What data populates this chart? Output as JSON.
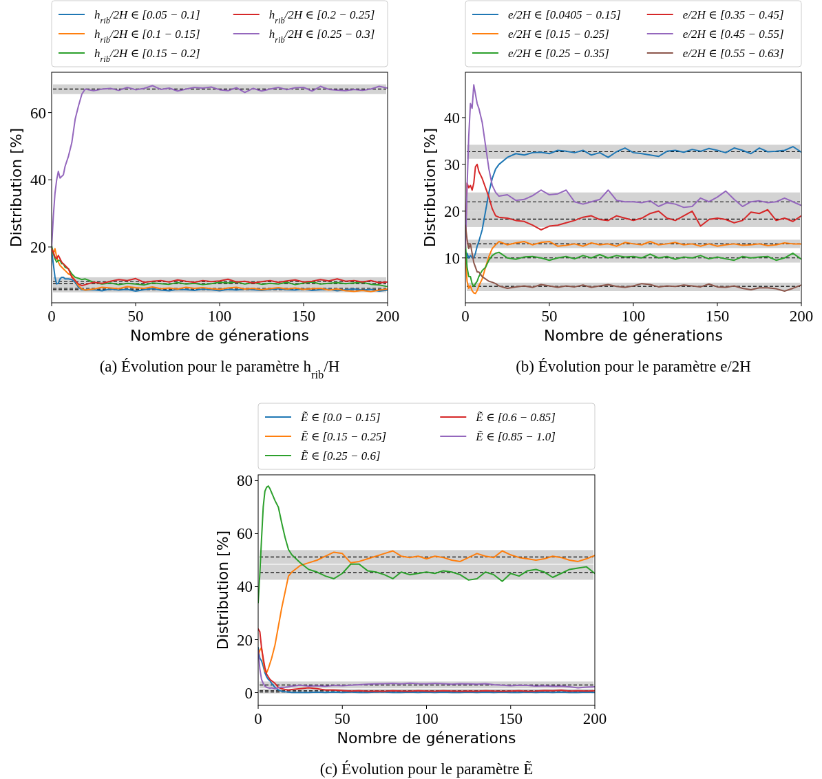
{
  "chart_data": [
    {
      "type": "line",
      "xlabel": "Nombre de génerations",
      "ylabel": "Distribution [%]",
      "annotations": [
        "(a) Évolution pour le paramètre h$_{rib}$/H"
      ],
      "legend": "top",
      "xlim": [
        0,
        200
      ],
      "xticks": [
        0,
        50,
        100,
        150,
        200
      ],
      "ylim": [
        3.4,
        72
      ],
      "yticks": [
        20,
        40,
        60
      ],
      "x": [
        0,
        1,
        2,
        3,
        4,
        5,
        6,
        7,
        8,
        10,
        12,
        14,
        16,
        18,
        20,
        25,
        30,
        35,
        40,
        45,
        50,
        55,
        60,
        65,
        70,
        75,
        80,
        85,
        90,
        95,
        100,
        105,
        110,
        115,
        120,
        125,
        130,
        135,
        140,
        145,
        150,
        155,
        160,
        165,
        170,
        175,
        180,
        185,
        190,
        195,
        200
      ],
      "series": [
        {
          "name": "h$_{rib}$/2H ∈ [0.05 − 0.1]",
          "color": "#1f77b4",
          "values": [
            19,
            15,
            11,
            9,
            9.2,
            10.5,
            11,
            11,
            10.5,
            10.5,
            10.3,
            9.5,
            8,
            7.3,
            7.2,
            7.3,
            7.0,
            7.5,
            7.2,
            7.4,
            6.9,
            7.3,
            7.6,
            7.2,
            7.0,
            7.4,
            7.3,
            7.1,
            7.5,
            7.3,
            7.0,
            7.4,
            7.2,
            7.5,
            7.3,
            7.1,
            7.4,
            7.6,
            7.3,
            7.2,
            7.5,
            7.1,
            7.3,
            7.4,
            7.0,
            7.3,
            7.5,
            7.2,
            7.4,
            6.9,
            7.2
          ]
        },
        {
          "name": "h$_{rib}$/2H ∈ [0.1 − 0.15]",
          "color": "#ff7f0e",
          "values": [
            19.5,
            18,
            19.5,
            17,
            15.5,
            14.5,
            14,
            13.5,
            13,
            12,
            11.5,
            10,
            8.5,
            7.5,
            7.2,
            7.5,
            8.0,
            7.8,
            7.6,
            8.2,
            7.9,
            7.7,
            8.1,
            7.6,
            7.8,
            7.5,
            8.0,
            7.7,
            7.9,
            7.6,
            7.4,
            7.8,
            8.0,
            7.5,
            7.7,
            7.3,
            7.6,
            7.9,
            7.5,
            7.8,
            7.4,
            7.6,
            7.7,
            7.2,
            7.5,
            7.0,
            6.8,
            7.1,
            6.7,
            7.2,
            7.5
          ]
        },
        {
          "name": "h$_{rib}$/2H ∈ [0.15 − 0.2]",
          "color": "#2ca02c",
          "values": [
            20.5,
            18,
            16.5,
            15.5,
            16,
            16,
            15,
            15,
            14,
            13.5,
            12,
            11,
            10.7,
            10.3,
            10.5,
            9.5,
            9.0,
            9.3,
            8.8,
            9.2,
            9.0,
            8.7,
            9.3,
            9.1,
            8.9,
            9.4,
            9.0,
            9.2,
            8.8,
            9.1,
            9.5,
            9.3,
            9.6,
            9.0,
            9.4,
            8.9,
            9.2,
            9.0,
            9.5,
            8.8,
            9.3,
            9.6,
            9.0,
            9.2,
            9.4,
            9.1,
            9.3,
            9.5,
            8.9,
            8.7,
            8.2
          ]
        },
        {
          "name": "h$_{rib}$/2H ∈ [0.2 − 0.25]",
          "color": "#d62728",
          "values": [
            19.5,
            18.5,
            17,
            16.5,
            17.5,
            16.5,
            15.5,
            15,
            14.5,
            13.5,
            11,
            10,
            9,
            8.5,
            8.8,
            9.5,
            9.2,
            9.8,
            10.3,
            10.0,
            10.6,
            9.5,
            9.8,
            10.0,
            9.6,
            10.2,
            9.8,
            9.5,
            10.0,
            9.7,
            9.9,
            10.4,
            9.6,
            9.8,
            9.3,
            9.7,
            10.0,
            9.5,
            9.9,
            10.2,
            9.6,
            9.8,
            10.3,
            9.9,
            10.5,
            9.8,
            10.0,
            9.6,
            10.0,
            9.4,
            9.6
          ]
        },
        {
          "name": "h$_{rib}$/2H ∈ [0.25 − 0.3]",
          "color": "#9467bd",
          "values": [
            20,
            29,
            36,
            40,
            42.5,
            40.5,
            41,
            41.5,
            44,
            47,
            51,
            58,
            62,
            65.5,
            67,
            66.5,
            67,
            67.2,
            66.6,
            67.5,
            66.8,
            67.2,
            68,
            66.9,
            67.3,
            66.4,
            67,
            67.5,
            67.3,
            67.6,
            66.8,
            66.5,
            67.4,
            66,
            67.2,
            66.4,
            67,
            67.5,
            66.8,
            67.4,
            67.5,
            66.4,
            67.8,
            66.9,
            66.7,
            66.5,
            66.9,
            66.6,
            67,
            67.8,
            67.3
          ]
        }
      ],
      "bands": [
        {
          "axis": "y",
          "from": 6.5,
          "to": 11.0,
          "color": "#d3d3d3"
        },
        {
          "axis": "y",
          "from": 65.5,
          "to": 68.4,
          "color": "#d3d3d3"
        }
      ],
      "ref_lines": [
        {
          "axis": "y",
          "value": 7.3,
          "color": "#000000",
          "line_style": "dashed"
        },
        {
          "axis": "y",
          "value": 7.7,
          "color": "#000000",
          "line_style": "dashed"
        },
        {
          "axis": "y",
          "value": 9.1,
          "color": "#000000",
          "line_style": "dashed"
        },
        {
          "axis": "y",
          "value": 9.7,
          "color": "#000000",
          "line_style": "dashed"
        },
        {
          "axis": "y",
          "value": 67.0,
          "color": "#000000",
          "line_style": "dashed"
        }
      ]
    },
    {
      "type": "line",
      "xlabel": "Nombre de génerations",
      "ylabel": "Distribution [%]",
      "annotations": [
        "(b) Évolution pour le paramètre e/2H"
      ],
      "legend": "top",
      "xlim": [
        0,
        200
      ],
      "xticks": [
        0,
        50,
        100,
        150,
        200
      ],
      "ylim": [
        0.4,
        49.7
      ],
      "yticks": [
        10,
        20,
        30,
        40
      ],
      "x": [
        0,
        1,
        2,
        3,
        4,
        5,
        6,
        7,
        8,
        10,
        12,
        14,
        16,
        18,
        20,
        25,
        30,
        35,
        40,
        45,
        50,
        55,
        60,
        65,
        70,
        75,
        80,
        85,
        90,
        95,
        100,
        105,
        110,
        115,
        120,
        125,
        130,
        135,
        140,
        145,
        150,
        155,
        160,
        165,
        170,
        175,
        180,
        185,
        190,
        195,
        200
      ],
      "series": [
        {
          "name": "e/2H ∈ [0.0405 − 0.15]",
          "color": "#1f77b4",
          "values": [
            8,
            11,
            10,
            10.5,
            10,
            10,
            11,
            12.5,
            13.5,
            16,
            20,
            24,
            27,
            29,
            30,
            31.5,
            32.3,
            32,
            32.5,
            32.6,
            32.3,
            33,
            32.8,
            32.5,
            33,
            32,
            32.5,
            31.5,
            32.7,
            33.5,
            32.5,
            32.3,
            32,
            31.7,
            32.8,
            33,
            32.6,
            33.2,
            32.8,
            33.4,
            33,
            32.5,
            33.5,
            33,
            32.3,
            33.5,
            32.7,
            32.8,
            33,
            33.8,
            32.6
          ]
        },
        {
          "name": "e/2H ∈ [0.15 − 0.25]",
          "color": "#ff7f0e",
          "values": [
            10,
            5,
            3.5,
            4,
            3,
            2.5,
            2.4,
            3,
            4,
            5.5,
            8,
            10.3,
            12,
            12.8,
            13.5,
            12.8,
            13.2,
            13.5,
            12.8,
            13.3,
            13.5,
            12.5,
            12.7,
            13,
            12.5,
            13.2,
            12.8,
            13,
            12.5,
            13.3,
            13,
            12.8,
            13.5,
            12.8,
            13,
            13.3,
            12.8,
            13,
            12.5,
            13,
            12.5,
            12.8,
            13,
            12.7,
            12.8,
            13,
            12.6,
            12.8,
            13.2,
            13,
            13
          ]
        },
        {
          "name": "e/2H ∈ [0.25 − 0.35]",
          "color": "#2ca02c",
          "values": [
            13,
            8,
            6,
            6,
            4.5,
            3.9,
            4.5,
            5,
            6,
            7.3,
            8,
            9.5,
            10.5,
            11,
            11.2,
            10,
            9.7,
            10.2,
            10.3,
            10,
            9.5,
            10,
            10.3,
            9.8,
            10.5,
            10,
            10.7,
            10,
            10.5,
            10.2,
            10.3,
            10,
            10.8,
            10,
            10.3,
            9.7,
            10.2,
            10,
            10.5,
            9.8,
            10.2,
            9.8,
            9.5,
            10.3,
            10,
            10.2,
            10.3,
            9.5,
            10,
            11,
            9.7
          ]
        },
        {
          "name": "e/2H ∈ [0.35 − 0.45]",
          "color": "#d62728",
          "values": [
            12,
            26,
            25,
            25.5,
            24.5,
            26,
            29.5,
            30,
            28.5,
            27,
            25,
            23,
            20.5,
            19,
            18.7,
            18.5,
            18,
            17.8,
            17,
            16,
            16.8,
            17,
            17.5,
            18,
            18.7,
            19,
            18.2,
            18,
            19,
            18.5,
            18,
            18.5,
            19.5,
            20,
            18.5,
            18,
            19,
            20,
            16.8,
            18.2,
            18.5,
            18.2,
            17.5,
            18,
            19.8,
            19.5,
            20.3,
            18,
            18.5,
            17.8,
            19
          ]
        },
        {
          "name": "e/2H ∈ [0.45 − 0.55]",
          "color": "#9467bd",
          "values": [
            12,
            25,
            36,
            43,
            42,
            47,
            45,
            43,
            42,
            39,
            34,
            29,
            25.5,
            24,
            23.2,
            23.5,
            22.3,
            22.5,
            23.3,
            24.5,
            23.5,
            23.7,
            24.5,
            22,
            21.5,
            22,
            22.5,
            24.5,
            22.3,
            22,
            22,
            21.8,
            22.2,
            21,
            21.8,
            21.5,
            20.8,
            21,
            22.8,
            22,
            23,
            24.3,
            22.5,
            21,
            22,
            22.2,
            21.8,
            22,
            22.8,
            22,
            21.2
          ]
        },
        {
          "name": "e/2H ∈ [0.55 − 0.63]",
          "color": "#8c564b",
          "values": [
            17,
            14,
            12,
            13,
            11,
            9,
            8,
            7,
            7,
            6,
            5.5,
            5,
            4.8,
            4.5,
            4,
            3.5,
            3.8,
            4,
            3.7,
            4.3,
            4,
            3.7,
            4,
            3.8,
            4.2,
            3.7,
            4,
            4.3,
            3.9,
            3.7,
            4,
            4.5,
            4.3,
            3.8,
            4,
            3.9,
            4.2,
            4,
            3.8,
            4.4,
            3.8,
            3.7,
            4,
            3.5,
            3.2,
            3.6,
            3.6,
            3.4,
            2.9,
            3.5,
            4.2
          ]
        }
      ],
      "bands": [
        {
          "axis": "y",
          "from": 31.2,
          "to": 34.2,
          "color": "#d3d3d3"
        },
        {
          "axis": "y",
          "from": 12.1,
          "to": 13.9,
          "color": "#d3d3d3"
        },
        {
          "axis": "y",
          "from": 9.0,
          "to": 11.0,
          "color": "#d3d3d3"
        },
        {
          "axis": "y",
          "from": 16.6,
          "to": 20.0,
          "color": "#d3d3d3"
        },
        {
          "axis": "y",
          "from": 20.0,
          "to": 24.0,
          "color": "#d3d3d3"
        },
        {
          "axis": "y",
          "from": 2.9,
          "to": 4.7,
          "color": "#d3d3d3"
        }
      ],
      "ref_lines": [
        {
          "axis": "y",
          "value": 32.7,
          "color": "#000000",
          "line_style": "dashed"
        },
        {
          "axis": "y",
          "value": 13.0,
          "color": "#000000",
          "line_style": "dashed"
        },
        {
          "axis": "y",
          "value": 10.0,
          "color": "#000000",
          "line_style": "dashed"
        },
        {
          "axis": "y",
          "value": 18.3,
          "color": "#000000",
          "line_style": "dashed"
        },
        {
          "axis": "y",
          "value": 22.0,
          "color": "#000000",
          "line_style": "dashed"
        },
        {
          "axis": "y",
          "value": 3.9,
          "color": "#000000",
          "line_style": "dashed"
        }
      ]
    },
    {
      "type": "line",
      "xlabel": "Nombre de génerations",
      "ylabel": "Distribution [%]",
      "annotations": [
        "(c) Évolution pour le paramètre Ẽ"
      ],
      "legend": "top",
      "xlim": [
        0,
        200
      ],
      "xticks": [
        0,
        50,
        100,
        150,
        200
      ],
      "ylim": [
        -4.8,
        82.2
      ],
      "yticks": [
        0,
        20,
        40,
        60,
        80
      ],
      "x": [
        0,
        1,
        2,
        3,
        4,
        5,
        6,
        7,
        8,
        10,
        12,
        14,
        16,
        18,
        20,
        25,
        30,
        35,
        40,
        45,
        50,
        55,
        60,
        65,
        70,
        75,
        80,
        85,
        90,
        95,
        100,
        105,
        110,
        115,
        120,
        125,
        130,
        135,
        140,
        145,
        150,
        155,
        160,
        165,
        170,
        175,
        180,
        185,
        190,
        195,
        200
      ],
      "series": [
        {
          "name": "Ẽ ∈ [0.0 − 0.15]",
          "color": "#1f77b4",
          "values": [
            17,
            13,
            12,
            10,
            7.5,
            6,
            5,
            4.5,
            3.5,
            2,
            1,
            0.5,
            0.3,
            0.2,
            0.1,
            0.1,
            0.1,
            0.2,
            0.1,
            0.2,
            0.1,
            0.2,
            0.1,
            0.1,
            0.2,
            0.2,
            0.1,
            0.1,
            0.2,
            0.1,
            0.2,
            0.1,
            0.2,
            0.1,
            0.1,
            0.2,
            0.1,
            0.2,
            0.1,
            0.2,
            0.1,
            0.1,
            0.2,
            0.1,
            0.2,
            0.1,
            0.2,
            0.1,
            0.1,
            0.2,
            0.1
          ]
        },
        {
          "name": "Ẽ ∈ [0.15 − 0.25]",
          "color": "#ff7f0e",
          "values": [
            14,
            16,
            17,
            12,
            8,
            7.5,
            9,
            11,
            13,
            18,
            25,
            32,
            38,
            44,
            45.5,
            48,
            49,
            50,
            51.5,
            53,
            52.5,
            49,
            49.5,
            50.5,
            51.5,
            52.5,
            53.5,
            51.5,
            51,
            51.5,
            50.5,
            51.5,
            51,
            50,
            49.5,
            51,
            52.5,
            51.5,
            51,
            53.5,
            52,
            51,
            50.5,
            50,
            50.5,
            51.5,
            51,
            50,
            49.5,
            50.5,
            51.8
          ]
        },
        {
          "name": "Ẽ ∈ [0.25 − 0.6]",
          "color": "#2ca02c",
          "values": [
            34,
            45,
            58,
            70,
            76,
            77.5,
            78,
            77,
            75.5,
            72.5,
            70,
            64,
            58.5,
            54,
            52,
            49,
            46.5,
            45.5,
            44,
            43,
            45,
            48.5,
            48.5,
            46,
            45.5,
            44.5,
            43,
            45.5,
            44.5,
            45,
            45.5,
            45,
            46,
            45.5,
            44.5,
            42.5,
            43,
            45.5,
            44.5,
            42,
            45,
            44,
            46,
            46.5,
            45.5,
            43.5,
            45,
            46.5,
            47,
            47.5,
            45
          ]
        },
        {
          "name": "Ẽ ∈ [0.6 − 0.85]",
          "color": "#d62728",
          "values": [
            24,
            23,
            17,
            13,
            9.5,
            7,
            6,
            5,
            4.5,
            3.5,
            2,
            1.5,
            1.2,
            1,
            1.2,
            1.5,
            1.8,
            1.5,
            1,
            1,
            0.8,
            0.6,
            0.7,
            0.5,
            0.6,
            0.5,
            0.7,
            0.6,
            0.5,
            0.7,
            0.6,
            0.5,
            0.7,
            0.6,
            0.5,
            0.6,
            0.5,
            0.7,
            0.6,
            0.5,
            0.6,
            0.7,
            0.5,
            0.6,
            0.8,
            0.7,
            0.9,
            0.6,
            0.7,
            0.6,
            0.7
          ]
        },
        {
          "name": "Ẽ ∈ [0.85 − 1.0]",
          "color": "#9467bd",
          "values": [
            16,
            9,
            5,
            3.5,
            2.5,
            2,
            1.8,
            1.7,
            1.8,
            1.5,
            1.8,
            2,
            2,
            2.2,
            2.5,
            2.8,
            2.5,
            2.6,
            2.4,
            2.7,
            2.6,
            2.8,
            3,
            3.2,
            3.3,
            3.4,
            3.5,
            3.3,
            3.6,
            3.4,
            3.3,
            3.5,
            3.4,
            3.2,
            3.4,
            3.3,
            3.2,
            3.4,
            3,
            2.8,
            2.6,
            2.8,
            2.7,
            2.5,
            2.6,
            2.4,
            2.5,
            2.2,
            1.8,
            2.1,
            2.2
          ]
        }
      ],
      "bands": [
        {
          "axis": "y",
          "from": -0.3,
          "to": 0.7,
          "color": "#d3d3d3"
        },
        {
          "axis": "y",
          "from": 48.6,
          "to": 53.8,
          "color": "#d3d3d3"
        },
        {
          "axis": "y",
          "from": 42.6,
          "to": 48.3,
          "color": "#d3d3d3"
        },
        {
          "axis": "y",
          "from": 0.0,
          "to": 1.5,
          "color": "#d3d3d3"
        },
        {
          "axis": "y",
          "from": 1.7,
          "to": 4.2,
          "color": "#d3d3d3"
        }
      ],
      "ref_lines": [
        {
          "axis": "y",
          "value": 0.2,
          "color": "#000000",
          "line_style": "dashed"
        },
        {
          "axis": "y",
          "value": 51.2,
          "color": "#000000",
          "line_style": "dashed"
        },
        {
          "axis": "y",
          "value": 45.3,
          "color": "#000000",
          "line_style": "dashed"
        },
        {
          "axis": "y",
          "value": 0.7,
          "color": "#000000",
          "line_style": "dashed"
        },
        {
          "axis": "y",
          "value": 2.9,
          "color": "#000000",
          "line_style": "dashed"
        }
      ]
    }
  ]
}
